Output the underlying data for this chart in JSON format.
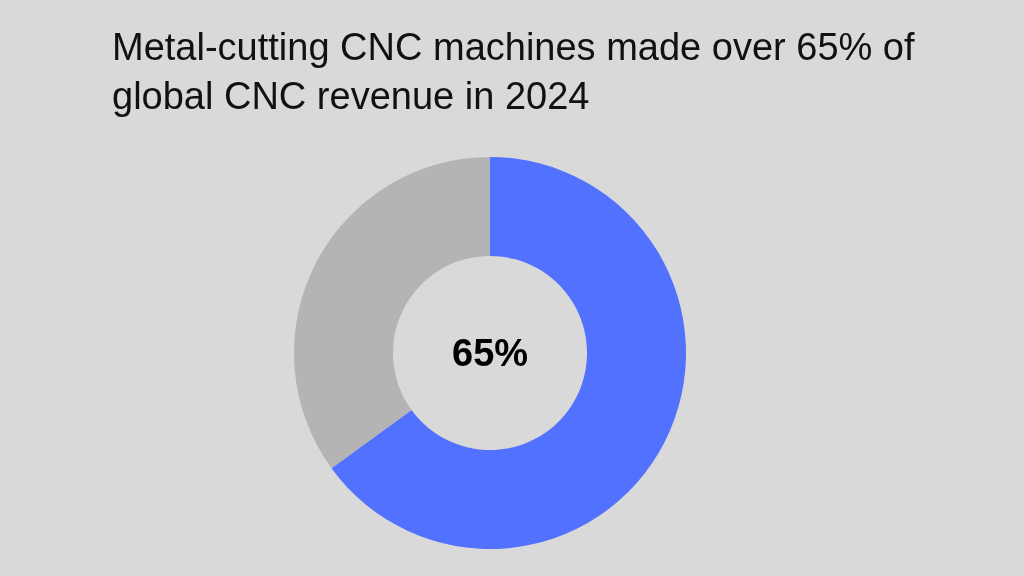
{
  "chart_data": {
    "type": "donut",
    "title": "Metal-cutting CNC machines made over 65% of global CNC revenue in 2024",
    "categories": [
      null,
      null
    ],
    "values": [
      65,
      35
    ],
    "colors": [
      "#5271ff",
      "#b4b4b4"
    ],
    "annotations": [
      "65%"
    ],
    "legend": false
  }
}
